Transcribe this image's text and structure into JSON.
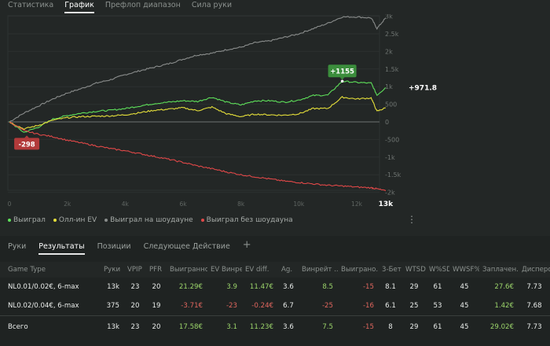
{
  "top_tabs": [
    "Статистика",
    "График",
    "Префлоп диапазон",
    "Сила руки"
  ],
  "active_top_tab": 1,
  "chart_data": {
    "type": "line",
    "x_ticks": [
      "0",
      "2k",
      "4k",
      "6k",
      "8k",
      "10k",
      "12k"
    ],
    "x_last_label": "13k",
    "y_ticks": [
      "3k",
      "2.5k",
      "2k",
      "1.5k",
      "1k",
      "500",
      "0",
      "-500",
      "-1k",
      "-1.5k",
      "-2k"
    ],
    "ylim": [
      -2000,
      3100
    ],
    "xlim": [
      0,
      13000
    ],
    "x": [
      0,
      500,
      1000,
      1500,
      2000,
      2500,
      3000,
      3500,
      4000,
      4500,
      5000,
      5500,
      6000,
      6500,
      7000,
      7500,
      8000,
      8500,
      9000,
      9500,
      10000,
      10500,
      11000,
      11500,
      12000,
      12500,
      12700,
      13000
    ],
    "series": [
      {
        "name": "Выиграл на шоудауне",
        "color": "#8a8d8c",
        "values": [
          0,
          250,
          450,
          650,
          820,
          950,
          1100,
          1200,
          1340,
          1450,
          1550,
          1650,
          1780,
          1900,
          1950,
          2050,
          2120,
          2250,
          2300,
          2400,
          2500,
          2650,
          2800,
          2980,
          2980,
          2950,
          2650,
          2950
        ]
      },
      {
        "name": "Выиграл",
        "color": "#5ee05a",
        "values": [
          0,
          -298,
          -150,
          80,
          180,
          250,
          300,
          330,
          380,
          450,
          520,
          560,
          600,
          580,
          700,
          560,
          480,
          600,
          600,
          560,
          620,
          750,
          760,
          1155,
          1120,
          1100,
          760,
          972
        ]
      },
      {
        "name": "Олл-ин EV",
        "color": "#e6e03a",
        "values": [
          0,
          -200,
          -100,
          50,
          120,
          150,
          160,
          170,
          200,
          260,
          330,
          360,
          400,
          320,
          420,
          230,
          150,
          220,
          200,
          190,
          230,
          380,
          380,
          700,
          650,
          680,
          300,
          400
        ]
      },
      {
        "name": "Выиграл без шоудауна",
        "color": "#e04848",
        "values": [
          0,
          -250,
          -350,
          -420,
          -520,
          -600,
          -680,
          -760,
          -820,
          -900,
          -980,
          -1060,
          -1150,
          -1250,
          -1330,
          -1420,
          -1500,
          -1560,
          -1620,
          -1680,
          -1720,
          -1760,
          -1800,
          -1820,
          -1850,
          -1870,
          -1900,
          -1960
        ]
      }
    ],
    "annotations": {
      "max_label": "+1155",
      "min_label": "-298",
      "last_label": "+971.8"
    }
  },
  "legend": [
    "Выиграл",
    "Олл-ин EV",
    "Выиграл на шоудауне",
    "Выиграл без шоудауна"
  ],
  "bottom_tabs": [
    "Руки",
    "Результаты",
    "Позиции",
    "Следующее Действие",
    "+"
  ],
  "active_bottom_tab": 1,
  "table": {
    "headers": [
      "Game Type",
      "Руки",
      "VPIP",
      "PFR",
      "Выигранно",
      "EV Винре...",
      "EV diff.",
      "Ag.",
      "Винрейт ...",
      "Выиграно...",
      "3-Бет",
      "WTSD",
      "W%SD",
      "WWSF%",
      "Заплачен...",
      "Дисперси..."
    ],
    "rows": [
      [
        "NL0.01/0.02€, 6-max",
        "13k",
        "23",
        "20",
        "21.29€",
        "3.9",
        "11.47€",
        "3.6",
        "8.5",
        "-15",
        "8.1",
        "29",
        "61",
        "45",
        "27.6€",
        "7.73"
      ],
      [
        "NL0.02/0.04€, 6-max",
        "375",
        "20",
        "19",
        "-3.71€",
        "-23",
        "-0.24€",
        "6.7",
        "-25",
        "-16",
        "6.1",
        "25",
        "53",
        "45",
        "1.42€",
        "7.68"
      ]
    ],
    "total": [
      "Всего",
      "13k",
      "23",
      "20",
      "17.58€",
      "3.1",
      "11.23€",
      "3.6",
      "7.5",
      "-15",
      "8",
      "29",
      "61",
      "45",
      "29.02€",
      "7.73"
    ]
  }
}
